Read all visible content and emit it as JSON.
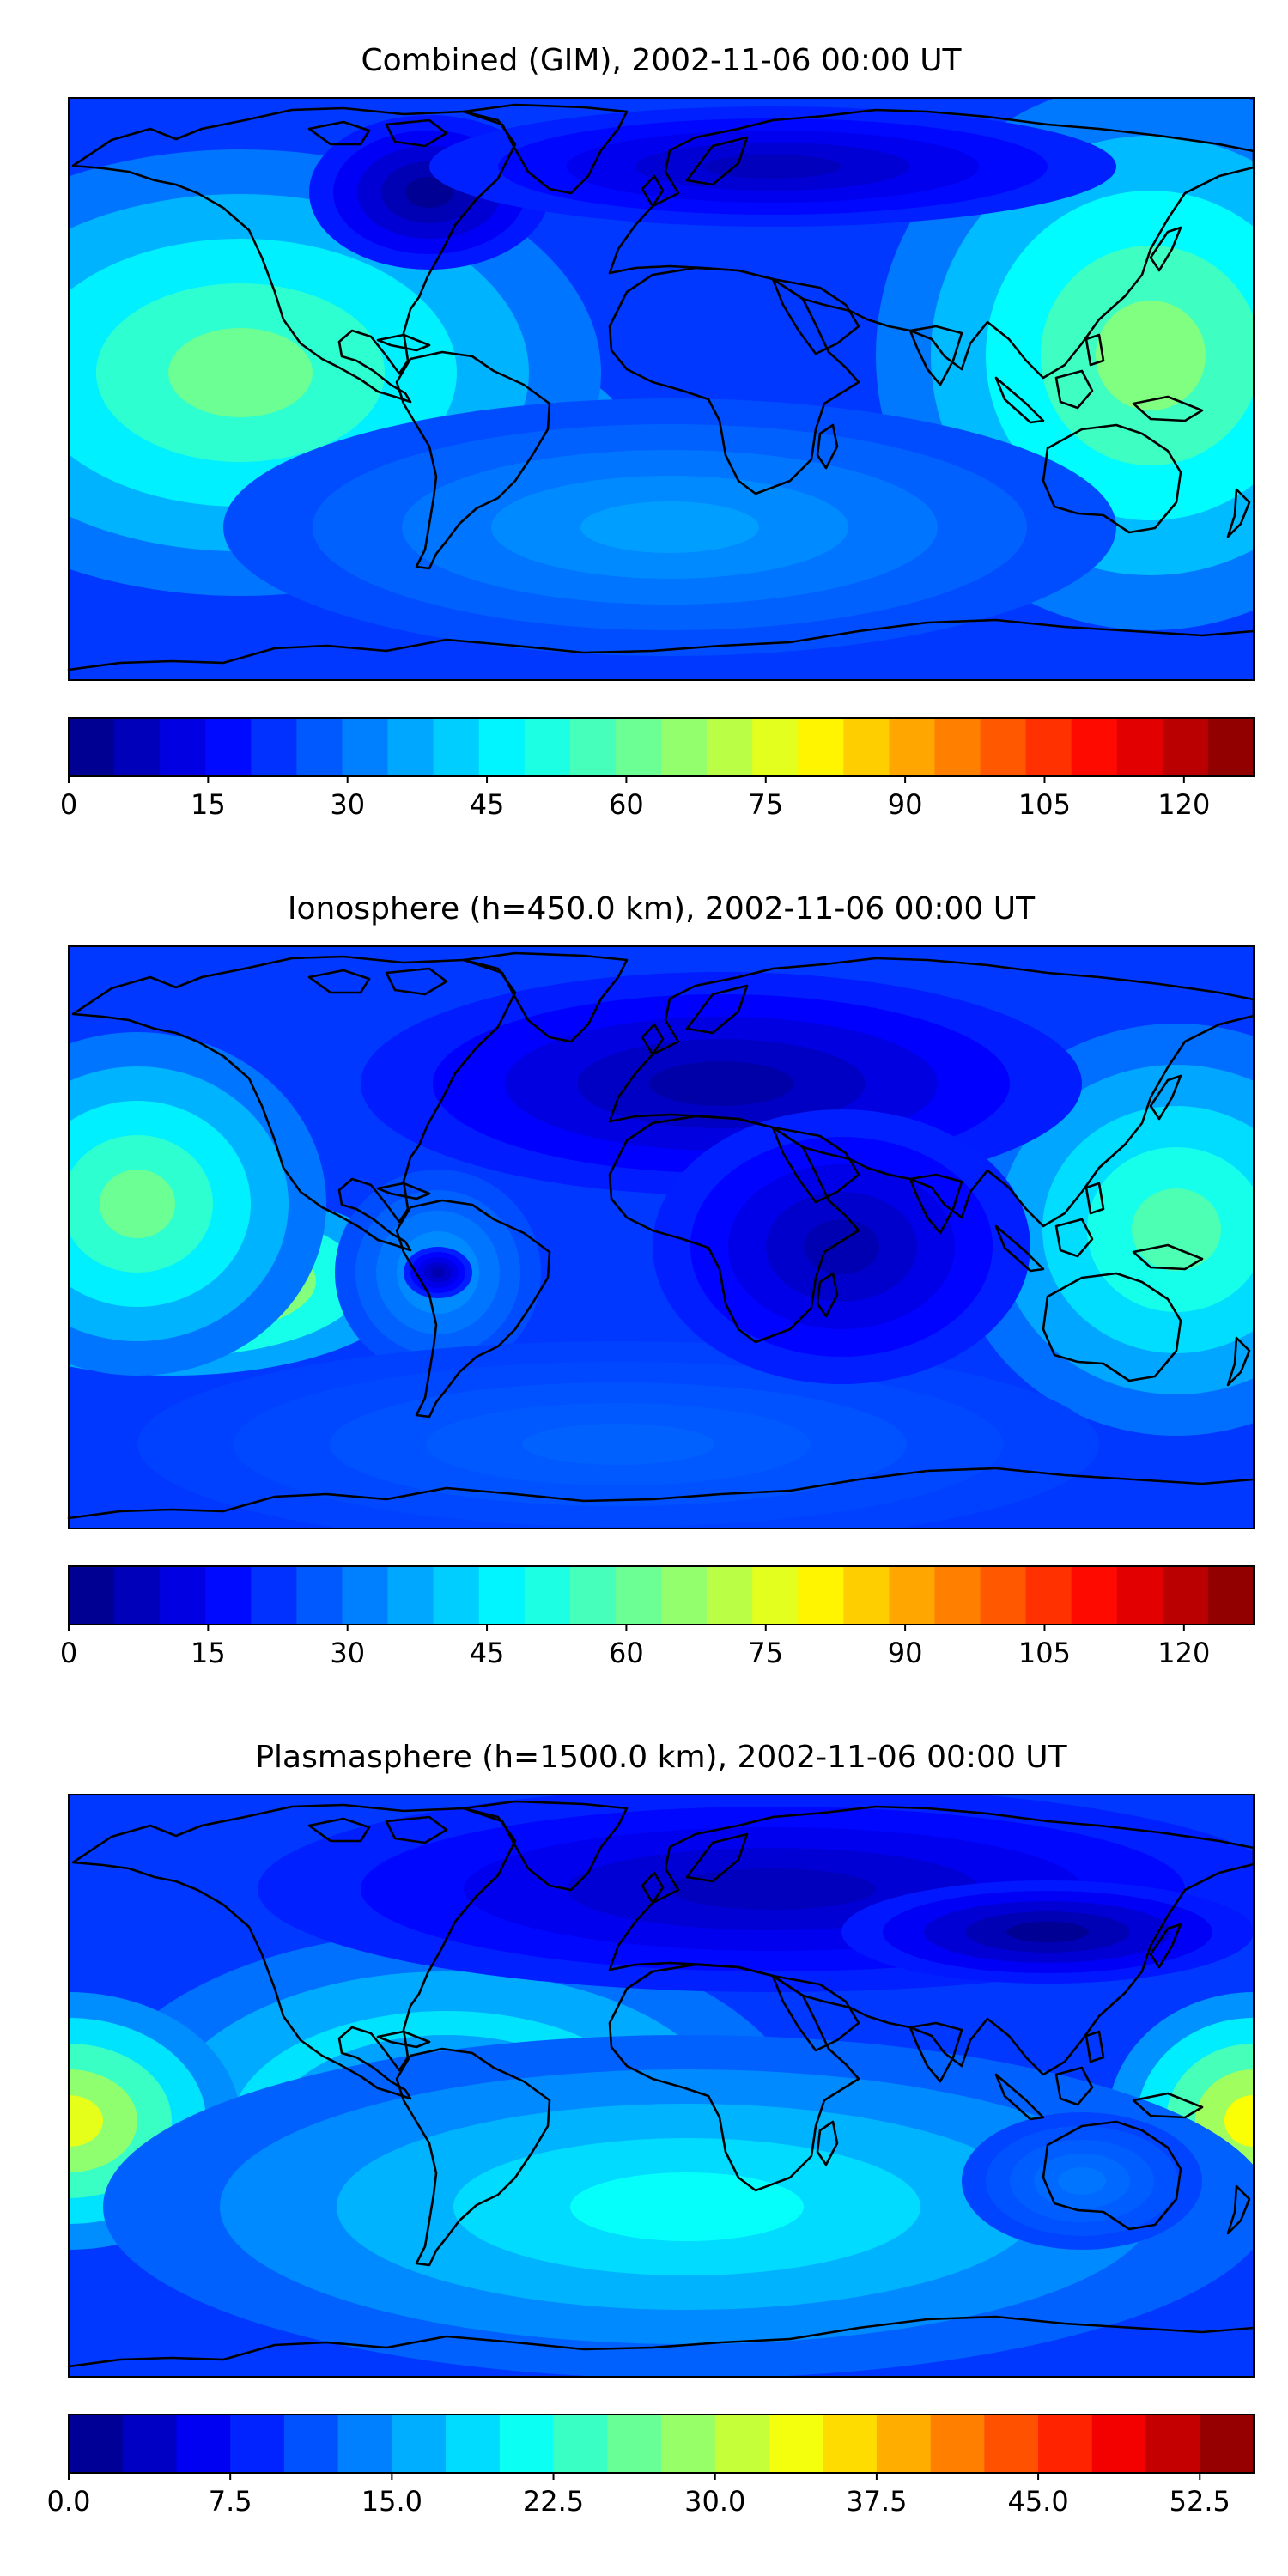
{
  "panels": [
    {
      "title": "Combined (GIM), 2002-11-06 00:00 UT",
      "field": "combined",
      "colorbar": {
        "vmin": 0,
        "vmax": 127.5,
        "levels": 26,
        "tick_labels": [
          "0",
          "15",
          "30",
          "45",
          "60",
          "75",
          "90",
          "105",
          "120"
        ]
      }
    },
    {
      "title": "Ionosphere  (h=450.0 km), 2002-11-06 00:00 UT",
      "field": "ionosphere",
      "colorbar": {
        "vmin": 0,
        "vmax": 127.5,
        "levels": 26,
        "tick_labels": [
          "0",
          "15",
          "30",
          "45",
          "60",
          "75",
          "90",
          "105",
          "120"
        ]
      }
    },
    {
      "title": "Plasmasphere (h=1500.0 km), 2002-11-06 00:00 UT",
      "field": "plasmasphere",
      "colorbar": {
        "vmin": 0,
        "vmax": 55,
        "levels": 22,
        "tick_labels": [
          "0.0",
          "7.5",
          "15.0",
          "22.5",
          "30.0",
          "37.5",
          "45.0",
          "52.5"
        ]
      }
    }
  ],
  "map": {
    "projection": "Plate Carree",
    "colormap": "jet",
    "coastlines": true
  }
}
